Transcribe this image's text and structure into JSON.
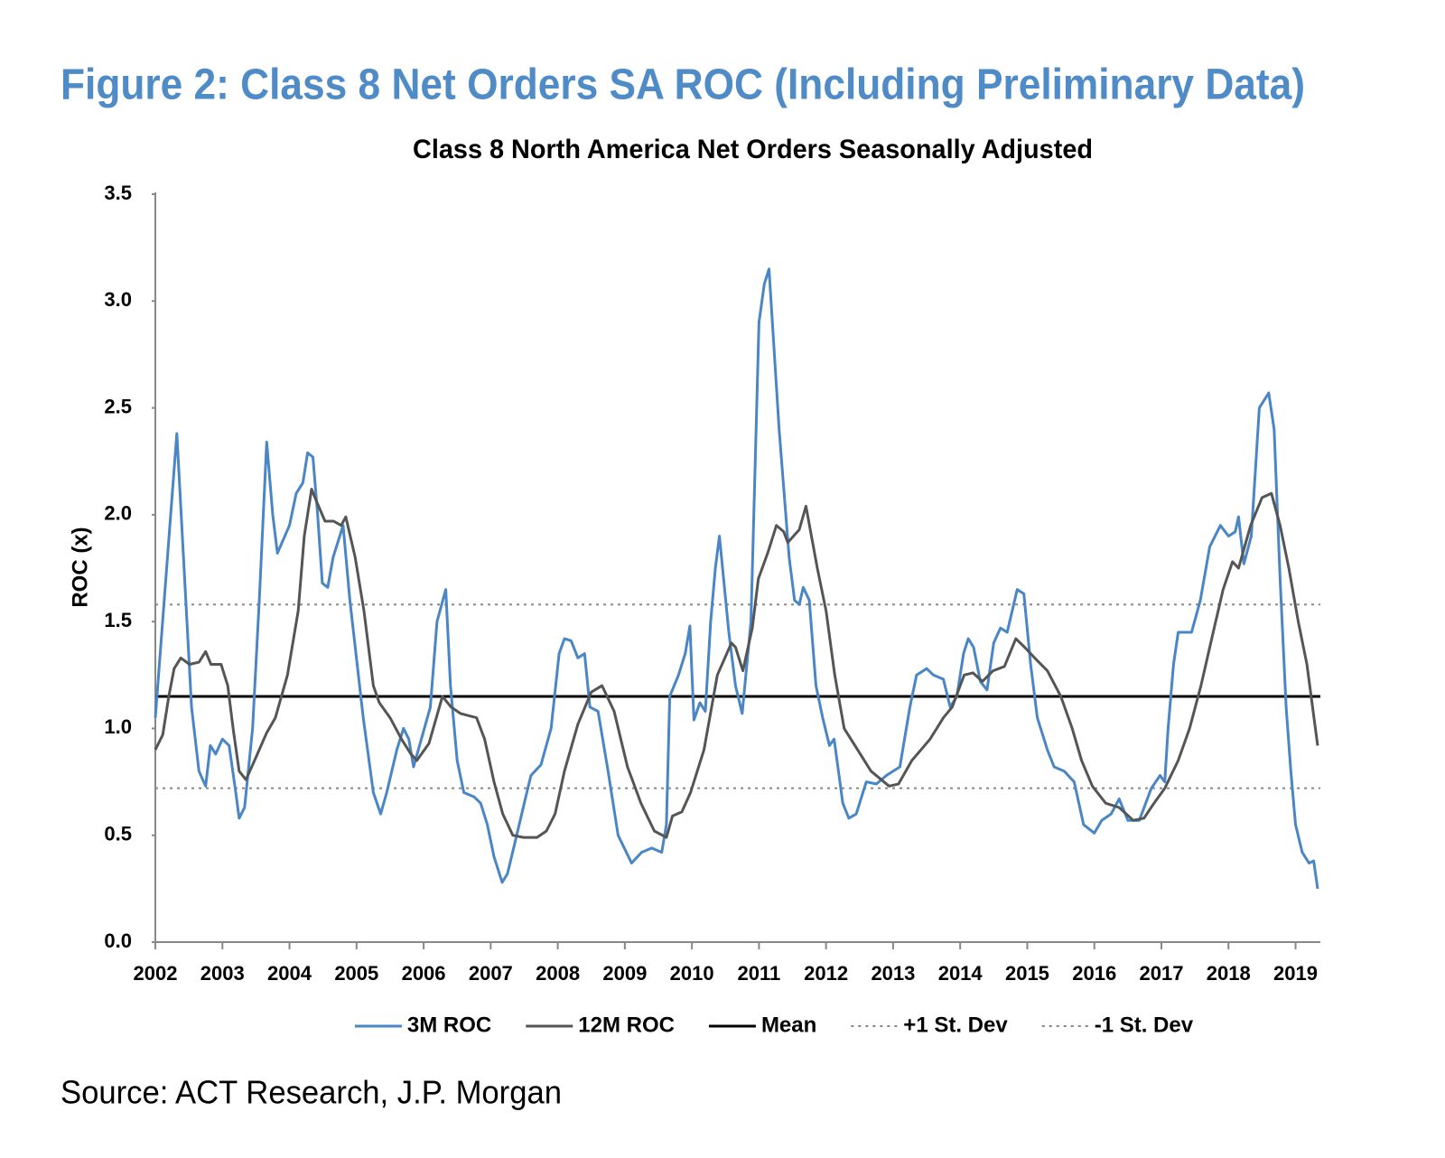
{
  "chart_data": {
    "type": "line",
    "title": "Figure 2: Class 8 Net Orders SA ROC (Including Preliminary Data)",
    "subtitle": "Class 8 North America Net Orders Seasonally Adjusted",
    "y_label": "ROC (x)",
    "source": "Source: ACT Research, J.P. Morgan",
    "xlim": [
      2002,
      2019.37
    ],
    "xticks": [
      2002,
      2003,
      2004,
      2005,
      2006,
      2007,
      2008,
      2009,
      2010,
      2011,
      2012,
      2013,
      2014,
      2015,
      2016,
      2017,
      2018,
      2019
    ],
    "ylim": [
      0,
      3.5
    ],
    "yticks": [
      {
        "value": 0,
        "label": "0.0"
      },
      0.5,
      {
        "value": 1,
        "label": "1.0"
      },
      1.5,
      {
        "value": 2,
        "label": "2.0"
      },
      2.5,
      {
        "value": 3,
        "label": "3.0"
      },
      3.5
    ],
    "grid": false,
    "legend": "bottom",
    "series": [
      {
        "name": "3M ROC",
        "color": "#4a86c5",
        "x": [
          2002.0,
          2002.32,
          2002.54,
          2002.65,
          2002.75,
          2002.82,
          2002.9,
          2003.0,
          2003.1,
          2003.2,
          2003.25,
          2003.33,
          2003.45,
          2003.55,
          2003.66,
          2003.75,
          2003.82,
          2004.0,
          2004.1,
          2004.2,
          2004.27,
          2004.35,
          2004.42,
          2004.49,
          2004.57,
          2004.65,
          2004.8,
          2004.9,
          2005.1,
          2005.25,
          2005.36,
          2005.45,
          2005.6,
          2005.7,
          2005.78,
          2005.85,
          2006.1,
          2006.2,
          2006.33,
          2006.4,
          2006.5,
          2006.6,
          2006.75,
          2006.85,
          2006.95,
          2007.05,
          2007.17,
          2007.25,
          2007.35,
          2007.5,
          2007.6,
          2007.75,
          2007.9,
          2008.02,
          2008.1,
          2008.2,
          2008.3,
          2008.4,
          2008.48,
          2008.6,
          2008.75,
          2008.9,
          2009.1,
          2009.25,
          2009.4,
          2009.55,
          2009.62,
          2009.67,
          2009.8,
          2009.9,
          2009.97,
          2010.03,
          2010.12,
          2010.2,
          2010.28,
          2010.35,
          2010.41,
          2010.55,
          2010.65,
          2010.75,
          2010.88,
          2011.0,
          2011.08,
          2011.15,
          2011.3,
          2011.45,
          2011.53,
          2011.6,
          2011.66,
          2011.75,
          2011.85,
          2011.95,
          2012.05,
          2012.12,
          2012.25,
          2012.34,
          2012.45,
          2012.6,
          2012.75,
          2012.9,
          2013.0,
          2013.1,
          2013.25,
          2013.35,
          2013.5,
          2013.6,
          2013.75,
          2013.85,
          2013.95,
          2014.05,
          2014.12,
          2014.2,
          2014.3,
          2014.4,
          2014.5,
          2014.6,
          2014.7,
          2014.85,
          2014.95,
          2015.05,
          2015.15,
          2015.3,
          2015.4,
          2015.55,
          2015.7,
          2015.84,
          2016.0,
          2016.11,
          2016.25,
          2016.37,
          2016.5,
          2016.67,
          2016.85,
          2016.98,
          2017.05,
          2017.1,
          2017.18,
          2017.25,
          2017.45,
          2017.58,
          2017.72,
          2017.88,
          2018.0,
          2018.1,
          2018.15,
          2018.23,
          2018.34,
          2018.46,
          2018.6,
          2018.68,
          2018.77,
          2018.86,
          2018.93,
          2019.0,
          2019.1,
          2019.2,
          2019.27,
          2019.33
        ],
        "values": [
          1.05,
          2.38,
          1.1,
          0.8,
          0.73,
          0.92,
          0.88,
          0.95,
          0.92,
          0.7,
          0.58,
          0.63,
          1.0,
          1.6,
          2.34,
          2.0,
          1.82,
          1.95,
          2.1,
          2.15,
          2.29,
          2.27,
          2.0,
          1.68,
          1.66,
          1.8,
          1.95,
          1.6,
          1.05,
          0.7,
          0.6,
          0.7,
          0.9,
          1.0,
          0.95,
          0.82,
          1.1,
          1.5,
          1.65,
          1.2,
          0.85,
          0.7,
          0.68,
          0.65,
          0.55,
          0.4,
          0.28,
          0.32,
          0.45,
          0.65,
          0.78,
          0.83,
          1.0,
          1.35,
          1.42,
          1.41,
          1.33,
          1.35,
          1.1,
          1.08,
          0.8,
          0.5,
          0.37,
          0.42,
          0.44,
          0.42,
          0.55,
          1.15,
          1.25,
          1.35,
          1.48,
          1.04,
          1.12,
          1.08,
          1.5,
          1.75,
          1.9,
          1.45,
          1.2,
          1.07,
          1.5,
          2.9,
          3.08,
          3.15,
          2.4,
          1.8,
          1.6,
          1.58,
          1.66,
          1.6,
          1.2,
          1.05,
          0.92,
          0.95,
          0.65,
          0.58,
          0.6,
          0.75,
          0.74,
          0.78,
          0.8,
          0.82,
          1.1,
          1.25,
          1.28,
          1.25,
          1.23,
          1.1,
          1.15,
          1.35,
          1.42,
          1.38,
          1.22,
          1.18,
          1.4,
          1.47,
          1.45,
          1.65,
          1.63,
          1.3,
          1.05,
          0.9,
          0.82,
          0.8,
          0.75,
          0.55,
          0.51,
          0.57,
          0.6,
          0.67,
          0.57,
          0.57,
          0.72,
          0.78,
          0.75,
          1.0,
          1.3,
          1.45,
          1.45,
          1.6,
          1.85,
          1.95,
          1.9,
          1.92,
          1.99,
          1.77,
          1.9,
          2.5,
          2.57,
          2.4,
          1.7,
          1.1,
          0.8,
          0.55,
          0.42,
          0.37,
          0.38,
          0.25
        ]
      },
      {
        "name": "12M ROC",
        "color": "#555555",
        "x": [
          2002.0,
          2002.11,
          2002.2,
          2002.28,
          2002.38,
          2002.51,
          2002.65,
          2002.75,
          2002.83,
          2002.98,
          2003.08,
          2003.16,
          2003.25,
          2003.35,
          2003.48,
          2003.66,
          2003.79,
          2003.97,
          2004.13,
          2004.22,
          2004.33,
          2004.42,
          2004.53,
          2004.66,
          2004.77,
          2004.84,
          2004.98,
          2005.11,
          2005.25,
          2005.34,
          2005.5,
          2005.67,
          2005.81,
          2005.9,
          2006.08,
          2006.28,
          2006.41,
          2006.55,
          2006.79,
          2006.91,
          2007.05,
          2007.18,
          2007.33,
          2007.49,
          2007.69,
          2007.83,
          2007.96,
          2008.1,
          2008.3,
          2008.5,
          2008.66,
          2008.84,
          2009.04,
          2009.24,
          2009.44,
          2009.62,
          2009.71,
          2009.85,
          2009.98,
          2010.18,
          2010.38,
          2010.59,
          2010.65,
          2010.76,
          2010.9,
          2010.99,
          2011.13,
          2011.26,
          2011.37,
          2011.43,
          2011.6,
          2011.7,
          2011.87,
          2012.0,
          2012.13,
          2012.27,
          2012.47,
          2012.67,
          2012.94,
          2013.08,
          2013.28,
          2013.55,
          2013.75,
          2013.88,
          2014.06,
          2014.19,
          2014.33,
          2014.49,
          2014.66,
          2014.83,
          2014.96,
          2015.14,
          2015.3,
          2015.5,
          2015.67,
          2015.81,
          2015.97,
          2016.17,
          2016.37,
          2016.58,
          2016.74,
          2016.89,
          2017.05,
          2017.25,
          2017.42,
          2017.59,
          2017.75,
          2017.92,
          2018.06,
          2018.15,
          2018.33,
          2018.5,
          2018.64,
          2018.77,
          2018.9,
          2019.04,
          2019.17,
          2019.33
        ],
        "values": [
          0.9,
          0.97,
          1.15,
          1.28,
          1.33,
          1.3,
          1.31,
          1.36,
          1.3,
          1.3,
          1.2,
          1.0,
          0.8,
          0.76,
          0.85,
          0.98,
          1.05,
          1.25,
          1.55,
          1.9,
          2.12,
          2.05,
          1.97,
          1.97,
          1.95,
          1.99,
          1.8,
          1.55,
          1.2,
          1.12,
          1.05,
          0.95,
          0.88,
          0.85,
          0.93,
          1.15,
          1.1,
          1.07,
          1.05,
          0.95,
          0.75,
          0.6,
          0.5,
          0.49,
          0.49,
          0.52,
          0.6,
          0.8,
          1.02,
          1.17,
          1.2,
          1.08,
          0.82,
          0.65,
          0.52,
          0.49,
          0.59,
          0.61,
          0.7,
          0.9,
          1.25,
          1.4,
          1.38,
          1.27,
          1.47,
          1.7,
          1.82,
          1.95,
          1.92,
          1.87,
          1.93,
          2.04,
          1.75,
          1.55,
          1.25,
          1.0,
          0.9,
          0.8,
          0.73,
          0.74,
          0.85,
          0.95,
          1.05,
          1.1,
          1.25,
          1.26,
          1.22,
          1.27,
          1.29,
          1.42,
          1.38,
          1.32,
          1.27,
          1.15,
          1.0,
          0.85,
          0.73,
          0.65,
          0.63,
          0.57,
          0.58,
          0.65,
          0.72,
          0.85,
          1.0,
          1.2,
          1.42,
          1.65,
          1.78,
          1.75,
          1.95,
          2.08,
          2.1,
          1.95,
          1.75,
          1.5,
          1.3,
          0.92
        ]
      }
    ],
    "reference_lines": [
      {
        "name": "Mean",
        "value": 1.15,
        "color": "#000000",
        "style": "solid"
      },
      {
        "name": "+1 St. Dev",
        "value": 1.58,
        "color": "#888888",
        "style": "dotted"
      },
      {
        "name": "-1 St. Dev",
        "value": 0.72,
        "color": "#888888",
        "style": "dotted"
      }
    ]
  }
}
